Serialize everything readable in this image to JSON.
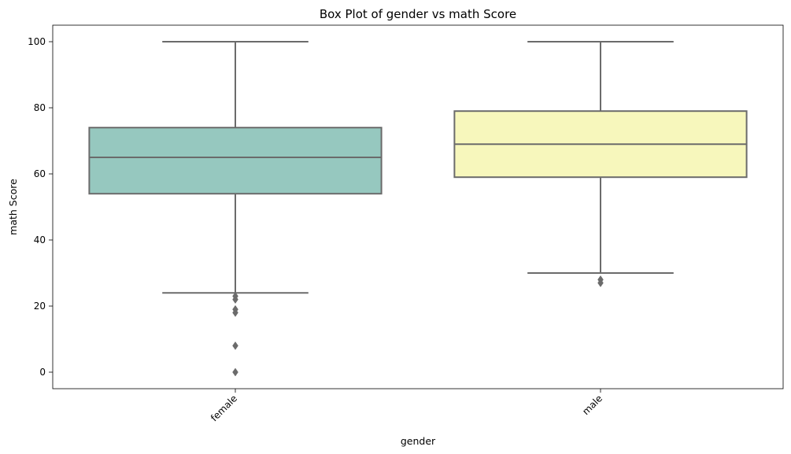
{
  "chart_data": {
    "type": "box",
    "title": "Box Plot of gender vs math Score",
    "xlabel": "gender",
    "ylabel": "math Score",
    "categories": [
      "female",
      "male"
    ],
    "ylim": [
      -5,
      105
    ],
    "yticks": [
      0,
      20,
      40,
      60,
      80,
      100
    ],
    "grid": false,
    "boxes": [
      {
        "category": "female",
        "whisker_low": 24,
        "q1": 54,
        "median": 65,
        "q3": 74,
        "whisker_high": 100,
        "outliers": [
          23,
          22,
          19,
          18,
          8,
          0
        ],
        "color": "#96c8bf"
      },
      {
        "category": "male",
        "whisker_low": 30,
        "q1": 59,
        "median": 69,
        "q3": 79,
        "whisker_high": 100,
        "outliers": [
          28,
          27
        ],
        "color": "#f7f7bc"
      }
    ],
    "line_color": "#6b6b6b"
  }
}
